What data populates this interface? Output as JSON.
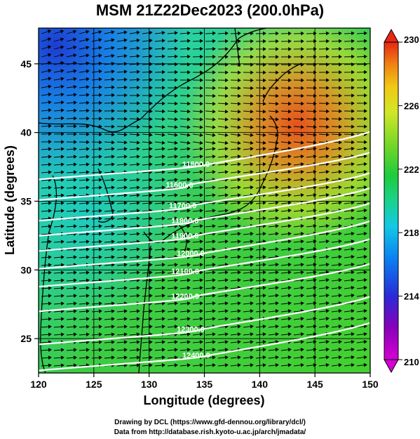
{
  "title": "MSM 21Z22Dec2023 (200.0hPa)",
  "x_axis": {
    "label": "Longitude (degrees)",
    "ticks": [
      "120",
      "125",
      "130",
      "135",
      "140",
      "145",
      "150"
    ],
    "range": [
      120,
      150
    ]
  },
  "y_axis": {
    "label": "Latitude  (degrees)",
    "ticks": [
      "25",
      "30",
      "35",
      "40",
      "45"
    ],
    "range": [
      22.5,
      47.6
    ]
  },
  "colorbar": {
    "ticks": [
      "210",
      "214",
      "218",
      "222",
      "226",
      "230"
    ],
    "range": [
      210,
      230
    ]
  },
  "contour_labels": [
    {
      "text": "11500.0",
      "lon": 133.0,
      "lat": 37.5
    },
    {
      "text": "11600.0",
      "lon": 131.5,
      "lat": 36.0
    },
    {
      "text": "11700.0",
      "lon": 131.8,
      "lat": 34.5
    },
    {
      "text": "11800.0",
      "lon": 132.0,
      "lat": 33.4
    },
    {
      "text": "11900.0",
      "lon": 132.0,
      "lat": 32.3
    },
    {
      "text": "12000.0",
      "lon": 132.5,
      "lat": 31.0
    },
    {
      "text": "12100.0",
      "lon": 132.0,
      "lat": 29.7
    },
    {
      "text": "12200.0",
      "lon": 132.0,
      "lat": 27.9
    },
    {
      "text": "12300.0",
      "lon": 132.5,
      "lat": 25.5
    },
    {
      "text": "12400.0",
      "lon": 133.0,
      "lat": 23.6
    }
  ],
  "credits": {
    "line1": "Drawing by DCL (https://www.gfd-dennou.org/library/dcl/)",
    "line2": "Data from http://database.rish.kyoto-u.ac.jp/arch/jmadata/"
  },
  "colors": {
    "scale": [
      "#d400d4",
      "#8a00b8",
      "#2a2ad8",
      "#0a82f0",
      "#14c8e6",
      "#1ad28c",
      "#1ecc3c",
      "#78d828",
      "#d2e628",
      "#f0c814",
      "#f08214",
      "#e62814"
    ]
  }
}
